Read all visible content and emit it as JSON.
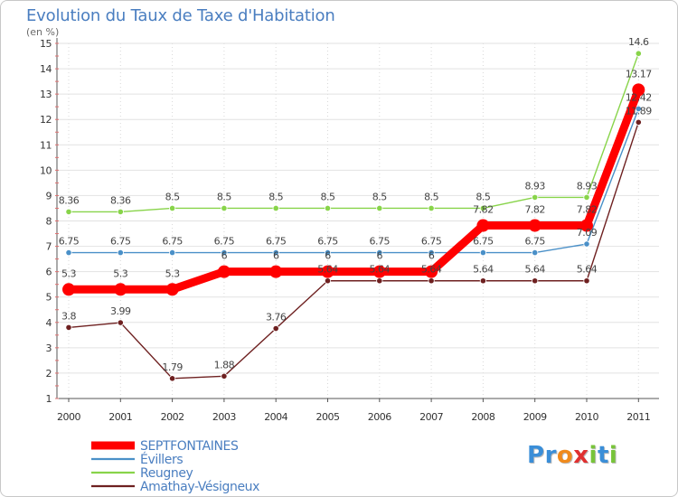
{
  "chart_data": {
    "type": "line",
    "title": "Evolution du Taux de Taxe d'Habitation",
    "subtitle": "(en %)",
    "xlabel": "",
    "ylabel": "",
    "ylim": [
      1,
      15
    ],
    "yticks": [
      1,
      2,
      3,
      4,
      5,
      6,
      7,
      8,
      9,
      10,
      11,
      12,
      13,
      14,
      15
    ],
    "categories": [
      "2000",
      "2001",
      "2002",
      "2003",
      "2004",
      "2005",
      "2006",
      "2007",
      "2008",
      "2009",
      "2010",
      "2011"
    ],
    "grid": true,
    "legend_position": "bottom-left",
    "series": [
      {
        "name": "SEPTFONTAINES",
        "color": "#ff0000",
        "values": [
          5.3,
          5.3,
          5.3,
          6,
          6,
          6,
          6,
          6,
          7.82,
          7.82,
          7.82,
          13.17
        ],
        "labels": [
          "5.3",
          "5.3",
          "5.3",
          "6",
          "6",
          "6",
          "6",
          "6",
          "7.82",
          "7.82",
          "7.82",
          "13.17"
        ]
      },
      {
        "name": "Évillers",
        "color": "#4a90c8",
        "values": [
          6.75,
          6.75,
          6.75,
          6.75,
          6.75,
          6.75,
          6.75,
          6.75,
          6.75,
          6.75,
          7.09,
          12.42
        ],
        "labels": [
          "6.75",
          "6.75",
          "6.75",
          "6.75",
          "6.75",
          "6.75",
          "6.75",
          "6.75",
          "6.75",
          "6.75",
          "7.09",
          "12.42"
        ]
      },
      {
        "name": "Reugney",
        "color": "#88d44a",
        "values": [
          8.36,
          8.36,
          8.5,
          8.5,
          8.5,
          8.5,
          8.5,
          8.5,
          8.5,
          8.93,
          8.93,
          14.6
        ],
        "labels": [
          "8.36",
          "8.36",
          "8.5",
          "8.5",
          "8.5",
          "8.5",
          "8.5",
          "8.5",
          "8.5",
          "8.93",
          "8.93",
          "14.6"
        ]
      },
      {
        "name": "Amathay-Vésigneux",
        "color": "#6e2020",
        "values": [
          3.8,
          3.99,
          1.79,
          1.88,
          3.76,
          5.64,
          5.64,
          5.64,
          5.64,
          5.64,
          5.64,
          11.89
        ],
        "labels": [
          "3.8",
          "3.99",
          "1.79",
          "1.88",
          "3.76",
          "5.64",
          "5.64",
          "5.64",
          "5.64",
          "5.64",
          "5.64",
          "11.89"
        ]
      }
    ]
  },
  "brand": {
    "letters": [
      "P",
      "r",
      "o",
      "x",
      "i",
      "t",
      "i"
    ],
    "colors": [
      "#3a8ed8",
      "#3a8ed8",
      "#f08a1c",
      "#e03030",
      "#78c43a",
      "#3a8ed8",
      "#78c43a"
    ]
  }
}
